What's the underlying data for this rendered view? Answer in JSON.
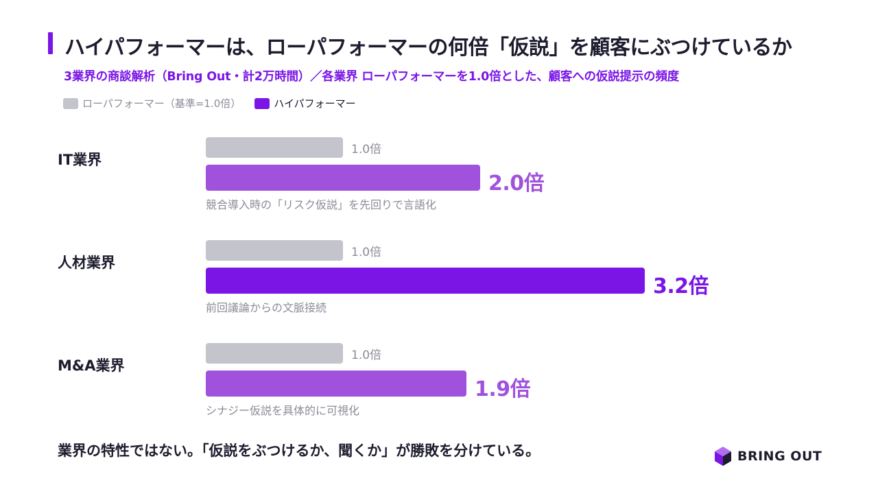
{
  "title": "ハイパフォーマーは、ローパフォーマーの何倍「仮説」を顧客にぶつけているか",
  "subtitle": "3業界の商談解析（Bring Out・計2万時間）／各業界 ローパフォーマーを1.0倍とした、顧客への仮説提示の頻度",
  "legend": {
    "low": "ローパフォーマー（基準=1.0倍）",
    "high": "ハイパフォーマー"
  },
  "colors": {
    "low": "#c4c4cc",
    "high_emphasis": "#7a15e6",
    "high": "#a052dc",
    "accent": "#7a15e6"
  },
  "chart_data": {
    "type": "bar",
    "orientation": "horizontal",
    "unit": "倍",
    "categories": [
      "IT業界",
      "人材業界",
      "M&A業界"
    ],
    "series": [
      {
        "name": "ローパフォーマー（基準=1.0倍）",
        "values": [
          1.0,
          1.0,
          1.0
        ],
        "labels": [
          "1.0倍",
          "1.0倍",
          "1.0倍"
        ]
      },
      {
        "name": "ハイパフォーマー",
        "values": [
          2.0,
          3.2,
          1.9
        ],
        "labels": [
          "2.0倍",
          "3.2倍",
          "1.9倍"
        ]
      }
    ],
    "notes": [
      "競合導入時の「リスク仮説」を先回りで言語化",
      "前回議論からの文脈接続",
      "シナジー仮説を具体的に可視化"
    ],
    "emphasized_category": "人材業界",
    "legend_position": "top-left",
    "grid": false
  },
  "footer": "業界の特性ではない。「仮説をぶつけるか、聞くか」が勝敗を分けている。",
  "logo": {
    "text": "BRING OUT",
    "icon": "cube-icon"
  }
}
